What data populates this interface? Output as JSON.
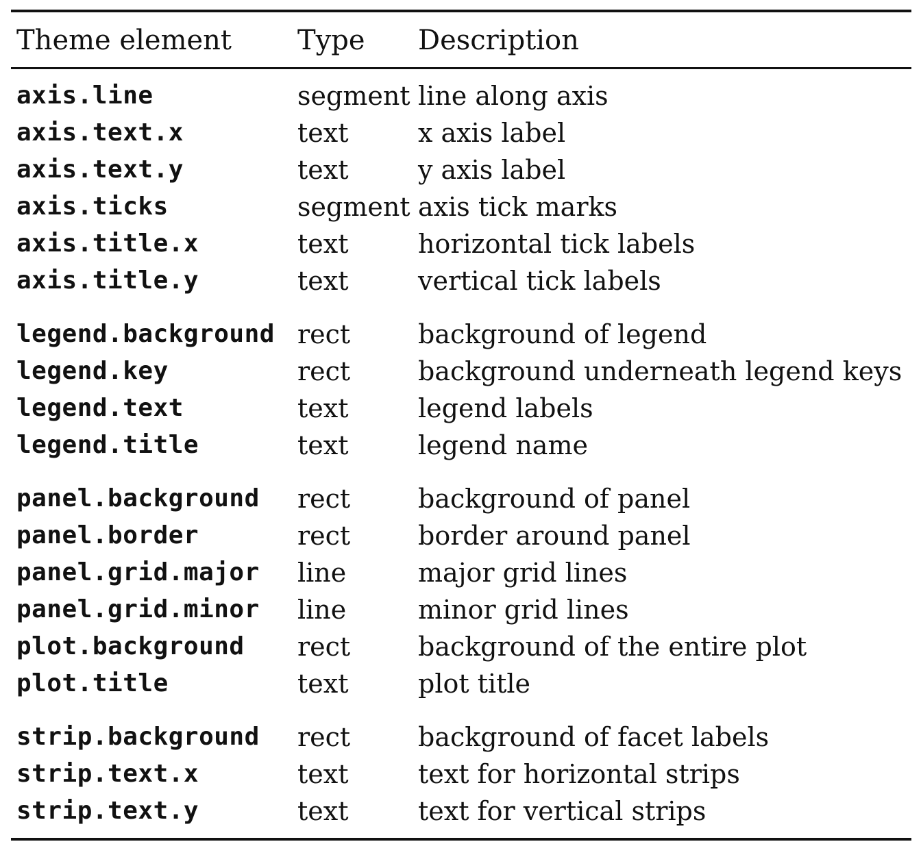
{
  "table": {
    "headers": {
      "element": "Theme element",
      "type": "Type",
      "description": "Description"
    },
    "groups": [
      {
        "rows": [
          {
            "element": "axis.line",
            "type": "segment",
            "description": "line along axis"
          },
          {
            "element": "axis.text.x",
            "type": "text",
            "description": "x axis label"
          },
          {
            "element": "axis.text.y",
            "type": "text",
            "description": "y axis label"
          },
          {
            "element": "axis.ticks",
            "type": "segment",
            "description": "axis tick marks"
          },
          {
            "element": "axis.title.x",
            "type": "text",
            "description": "horizontal tick labels"
          },
          {
            "element": "axis.title.y",
            "type": "text",
            "description": "vertical tick labels"
          }
        ]
      },
      {
        "rows": [
          {
            "element": "legend.background",
            "type": "rect",
            "description": "background of legend"
          },
          {
            "element": "legend.key",
            "type": "rect",
            "description": "background underneath legend keys"
          },
          {
            "element": "legend.text",
            "type": "text",
            "description": "legend labels"
          },
          {
            "element": "legend.title",
            "type": "text",
            "description": "legend name"
          }
        ]
      },
      {
        "rows": [
          {
            "element": "panel.background",
            "type": "rect",
            "description": "background of panel"
          },
          {
            "element": "panel.border",
            "type": "rect",
            "description": "border around panel"
          },
          {
            "element": "panel.grid.major",
            "type": "line",
            "description": "major grid lines"
          },
          {
            "element": "panel.grid.minor",
            "type": "line",
            "description": "minor grid lines"
          },
          {
            "element": "plot.background",
            "type": "rect",
            "description": "background of the entire plot"
          },
          {
            "element": "plot.title",
            "type": "text",
            "description": "plot title"
          }
        ]
      },
      {
        "rows": [
          {
            "element": "strip.background",
            "type": "rect",
            "description": "background of facet labels"
          },
          {
            "element": "strip.text.x",
            "type": "text",
            "description": "text for horizontal strips"
          },
          {
            "element": "strip.text.y",
            "type": "text",
            "description": "text for vertical strips"
          }
        ]
      }
    ]
  }
}
